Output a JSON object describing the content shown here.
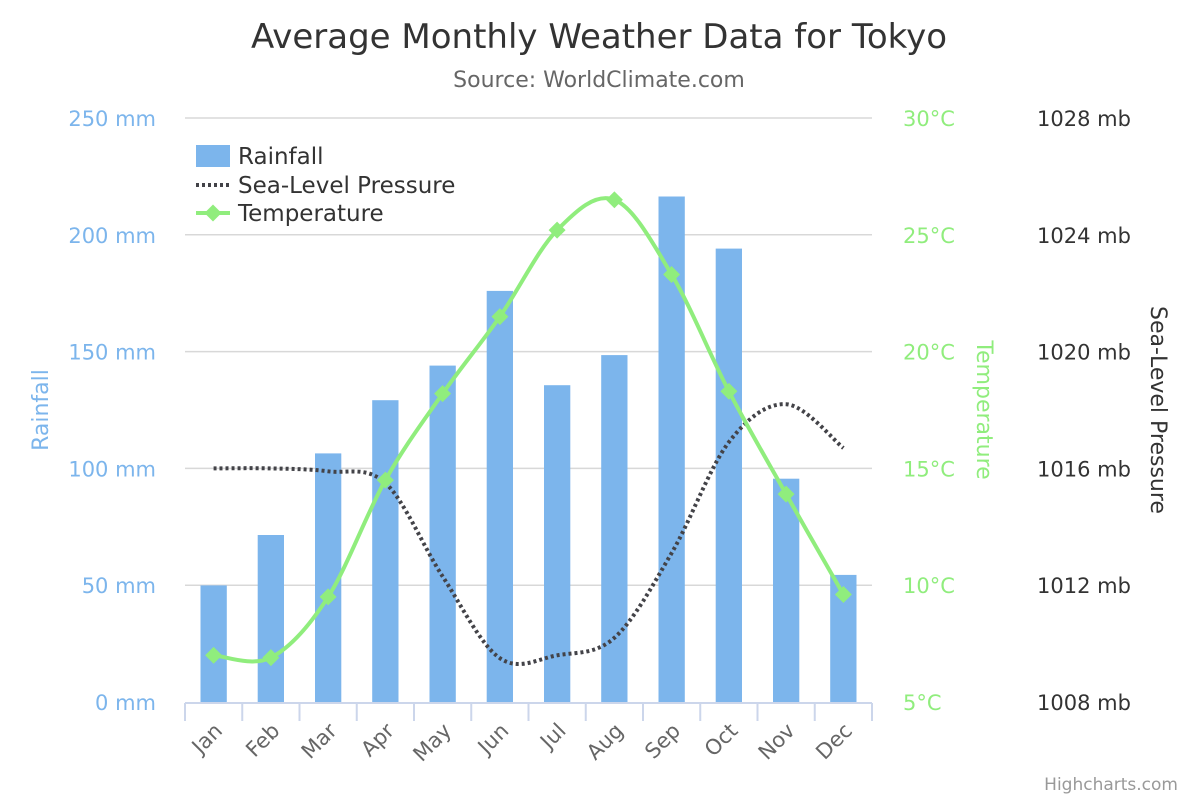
{
  "chart_data": {
    "type": "combo",
    "title": "Average Monthly Weather Data for Tokyo",
    "subtitle": "Source: WorldClimate.com",
    "categories": [
      "Jan",
      "Feb",
      "Mar",
      "Apr",
      "May",
      "Jun",
      "Jul",
      "Aug",
      "Sep",
      "Oct",
      "Nov",
      "Dec"
    ],
    "series": [
      {
        "name": "Rainfall",
        "type": "bar",
        "axis": "rainfall",
        "color": "#7cb5ec",
        "values": [
          49.9,
          71.5,
          106.4,
          129.2,
          144.0,
          176.0,
          135.6,
          148.5,
          216.4,
          194.1,
          95.6,
          54.4
        ]
      },
      {
        "name": "Sea-Level Pressure",
        "type": "line",
        "style": "dotted",
        "axis": "pressure",
        "color": "#434348",
        "values": [
          1016,
          1016,
          1015.9,
          1015.5,
          1012.3,
          1009.5,
          1009.6,
          1010.2,
          1013.1,
          1016.9,
          1018.2,
          1016.7
        ]
      },
      {
        "name": "Temperature",
        "type": "line",
        "style": "solid",
        "marker": "diamond",
        "axis": "temperature",
        "color": "#90ed7d",
        "values": [
          7.0,
          6.9,
          9.5,
          14.5,
          18.2,
          21.5,
          25.2,
          26.5,
          23.3,
          18.3,
          13.9,
          9.6
        ]
      }
    ],
    "axes": {
      "rainfall": {
        "title": "Rainfall",
        "range": [
          0,
          250
        ],
        "ticks": [
          0,
          50,
          100,
          150,
          200,
          250
        ],
        "tick_labels": [
          "0 mm",
          "50 mm",
          "100 mm",
          "150 mm",
          "200 mm",
          "250 mm"
        ],
        "side": "left"
      },
      "temperature": {
        "title": "Temperature",
        "range": [
          5,
          30
        ],
        "ticks": [
          5,
          10,
          15,
          20,
          25,
          30
        ],
        "tick_labels": [
          "5°C",
          "10°C",
          "15°C",
          "20°C",
          "25°C",
          "30°C"
        ],
        "side": "right"
      },
      "pressure": {
        "title": "Sea-Level Pressure",
        "range": [
          1008,
          1028
        ],
        "ticks": [
          1008,
          1012,
          1016,
          1020,
          1024,
          1028
        ],
        "tick_labels": [
          "1008 mb",
          "1012 mb",
          "1016 mb",
          "1020 mb",
          "1024 mb",
          "1028 mb"
        ],
        "side": "right"
      }
    },
    "grid": true,
    "legend": {
      "position": "top-left inside plot",
      "items": [
        "Rainfall",
        "Sea-Level Pressure",
        "Temperature"
      ]
    },
    "credits": "Highcharts.com"
  }
}
